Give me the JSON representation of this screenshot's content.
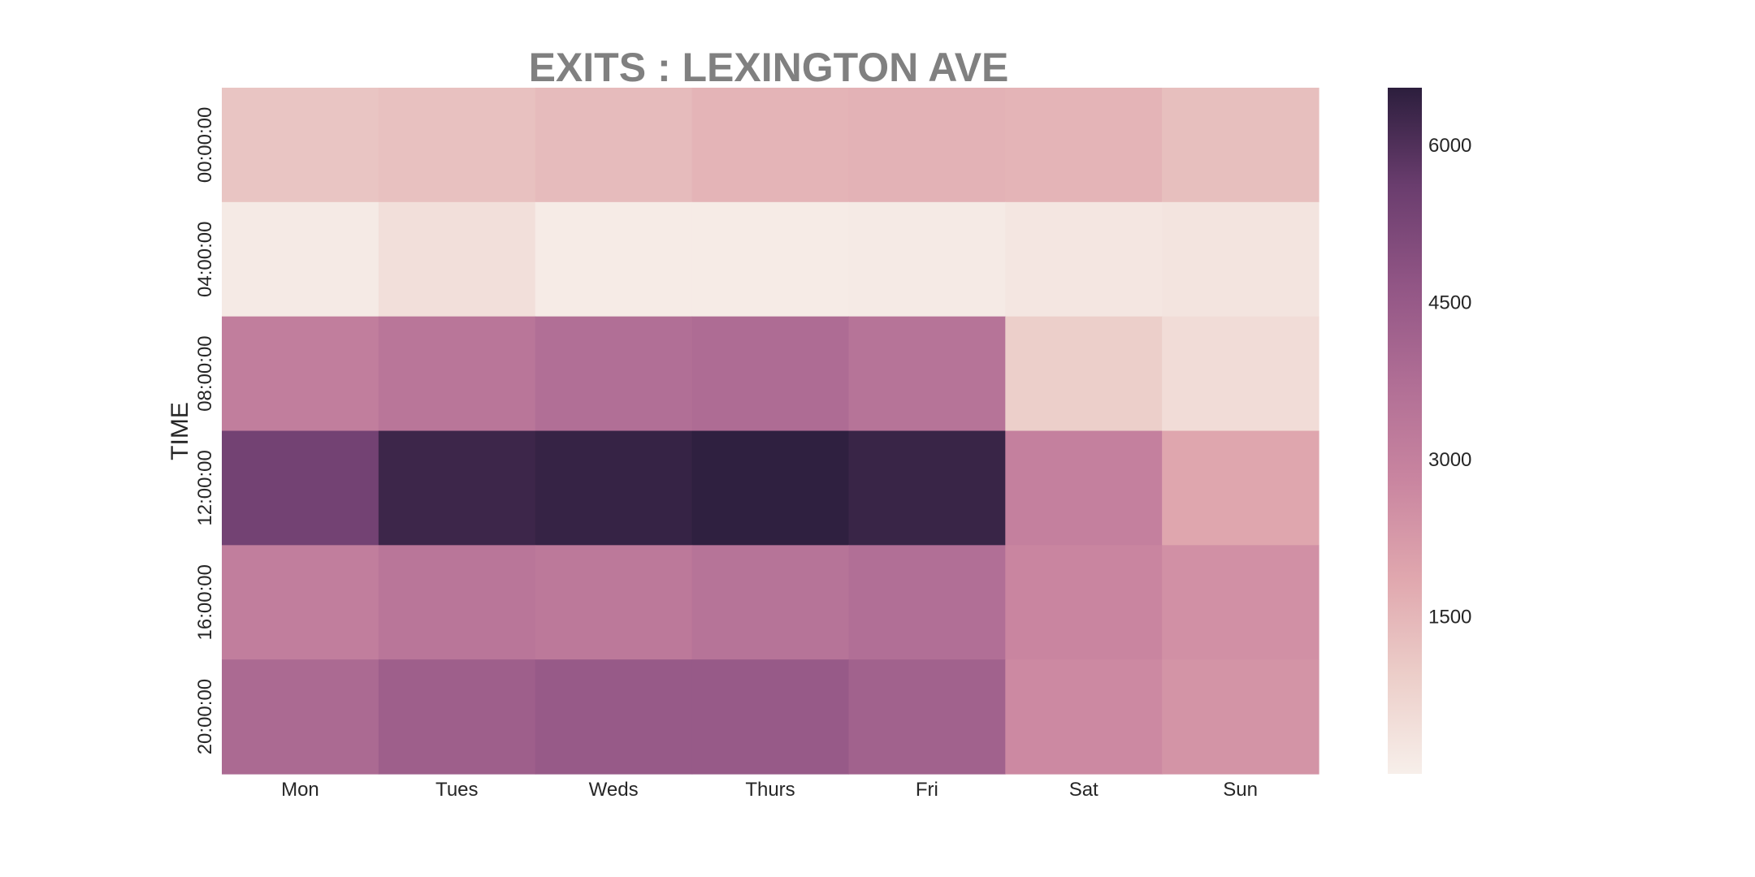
{
  "chart_data": {
    "type": "heatmap",
    "title": "EXITS : LEXINGTON AVE",
    "xlabel": "",
    "ylabel": "TIME",
    "columns": [
      "Mon",
      "Tues",
      "Weds",
      "Thurs",
      "Fri",
      "Sat",
      "Sun"
    ],
    "rows": [
      "00:00:00",
      "04:00:00",
      "08:00:00",
      "12:00:00",
      "16:00:00",
      "20:00:00"
    ],
    "values": [
      [
        1150,
        1250,
        1400,
        1550,
        1600,
        1550,
        1300
      ],
      [
        150,
        450,
        100,
        100,
        130,
        250,
        300
      ],
      [
        3100,
        3400,
        3700,
        3800,
        3500,
        900,
        550
      ],
      [
        5400,
        6300,
        6400,
        6500,
        6350,
        3000,
        1900
      ],
      [
        3100,
        3400,
        3300,
        3500,
        3700,
        2800,
        2500
      ],
      [
        3900,
        4300,
        4500,
        4500,
        4200,
        2700,
        2400
      ]
    ],
    "vmin": 0,
    "vmax": 6550,
    "colorbar": {
      "ticks": [
        1500,
        3000,
        4500,
        6000
      ],
      "tick_labels": [
        "1500",
        "3000",
        "4500",
        "6000"
      ]
    },
    "colormap": [
      "#f7efea",
      "#eccec9",
      "#e0a7ae",
      "#c985a0",
      "#b06e95",
      "#915585",
      "#6a3d6e",
      "#2c1e3d"
    ]
  }
}
